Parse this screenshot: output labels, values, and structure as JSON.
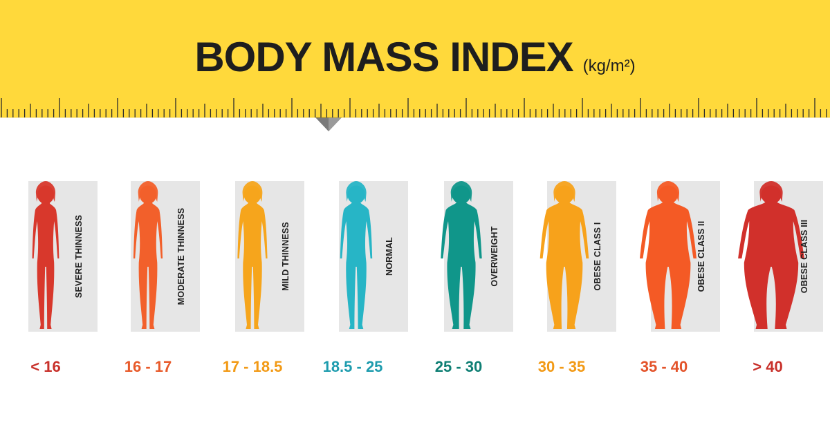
{
  "header": {
    "title": "BODY MASS INDEX",
    "unit": "(kg/m²)",
    "background_color": "#ffd93b",
    "ruler_icon": "measuring-tape-ruler",
    "pointer_icon": "triangle-down-pointer"
  },
  "categories": [
    {
      "label": "SEVERE THINNESS",
      "range": "< 16",
      "figure_color": "#d8382c",
      "text_color": "#c8302a",
      "body_icon": "body-silhouette-icon"
    },
    {
      "label": "MODERATE THINNESS",
      "range": "16 - 17",
      "figure_color": "#f2602b",
      "text_color": "#e85a2a",
      "body_icon": "body-silhouette-icon"
    },
    {
      "label": "MILD THINNESS",
      "range": "17 - 18.5",
      "figure_color": "#f6a51c",
      "text_color": "#f29a16",
      "body_icon": "body-silhouette-icon"
    },
    {
      "label": "NORMAL",
      "range": "18.5 - 25",
      "figure_color": "#27b5c6",
      "text_color": "#1e9cae",
      "body_icon": "body-silhouette-icon"
    },
    {
      "label": "OVERWEIGHT",
      "range": "25 - 30",
      "figure_color": "#10968a",
      "text_color": "#0f7f74",
      "body_icon": "body-silhouette-icon"
    },
    {
      "label": "OBESE CLASS I",
      "range": "30 - 35",
      "figure_color": "#f7a21b",
      "text_color": "#f29a16",
      "body_icon": "body-silhouette-icon"
    },
    {
      "label": "OBESE CLASS II",
      "range": "35 - 40",
      "figure_color": "#f45a25",
      "text_color": "#e3532a",
      "body_icon": "body-silhouette-icon"
    },
    {
      "label": "OBESE CLASS III",
      "range": "> 40",
      "figure_color": "#d1302b",
      "text_color": "#c8302a",
      "body_icon": "body-silhouette-icon"
    }
  ]
}
